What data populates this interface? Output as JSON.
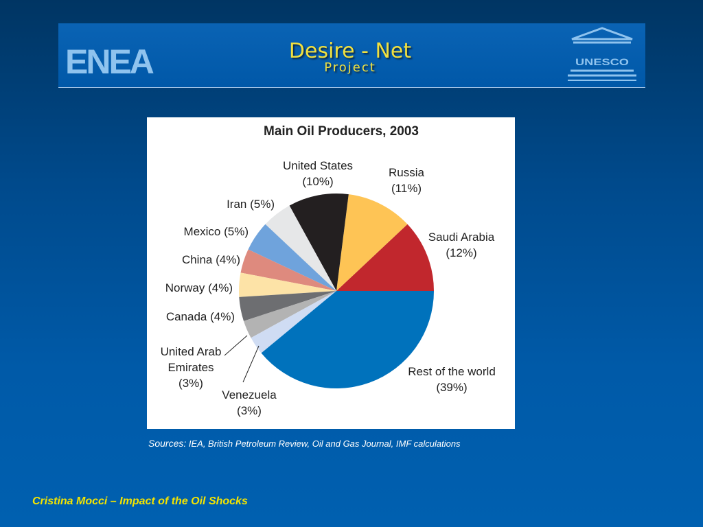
{
  "banner": {
    "left_logo": "ENEA",
    "title": "Desire - Net",
    "subtitle": "Project",
    "right_logo": "UNESCO"
  },
  "chart_data": {
    "type": "pie",
    "title": "Main Oil Producers, 2003",
    "slices": [
      {
        "name": "Saudi Arabia",
        "value": 12,
        "label": "(12%)",
        "color": "#c1272d"
      },
      {
        "name": "Russia",
        "value": 11,
        "label": "(11%)",
        "color": "#fec455"
      },
      {
        "name": "United States",
        "value": 10,
        "label": "(10%)",
        "color": "#231f20"
      },
      {
        "name": "Iran",
        "value": 5,
        "label": "(5%)",
        "color": "#e6e7e8"
      },
      {
        "name": "Mexico",
        "value": 5,
        "label": "(5%)",
        "color": "#6fa3dc"
      },
      {
        "name": "China",
        "value": 4,
        "label": "(4%)",
        "color": "#de8a7e"
      },
      {
        "name": "Norway",
        "value": 4,
        "label": "(4%)",
        "color": "#fde3a7"
      },
      {
        "name": "Canada",
        "value": 4,
        "label": "(4%)",
        "color": "#6d6e71"
      },
      {
        "name": "United Arab Emirates",
        "value": 3,
        "label": "(3%)",
        "color": "#b3b3b3"
      },
      {
        "name": "Venezuela",
        "value": 3,
        "label": "(3%)",
        "color": "#cfdcf3"
      },
      {
        "name": "Rest of the world",
        "value": 39,
        "label": "(39%)",
        "color": "#0072bc"
      }
    ]
  },
  "sources": {
    "lead": "Sources:",
    "text": " IEA, British Petroleum Review, Oil and Gas Journal, IMF calculations"
  },
  "footer": {
    "text": "Cristina Mocci – Impact of the Oil Shocks"
  }
}
